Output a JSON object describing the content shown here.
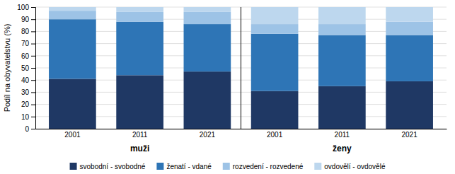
{
  "chart_data": {
    "type": "bar",
    "stacked": true,
    "categories": [
      "2001",
      "2011",
      "2021",
      "2001",
      "2011",
      "2021"
    ],
    "annotations": [
      "muži",
      "ženy"
    ],
    "series": [
      {
        "name": "svobodní - svobodné",
        "color": "#1f3864",
        "values": [
          41,
          44,
          47,
          31,
          35,
          39
        ]
      },
      {
        "name": "ženatí - vdané",
        "color": "#2e75b6",
        "values": [
          49,
          44,
          39,
          47,
          42,
          38
        ]
      },
      {
        "name": "rozvedení - rozvedené",
        "color": "#9dc3e6",
        "values": [
          7,
          8,
          10,
          8,
          9,
          11
        ]
      },
      {
        "name": "ovdovělí - ovdovělé",
        "color": "#bdd7ee",
        "values": [
          3,
          4,
          4,
          14,
          14,
          12
        ]
      }
    ],
    "y_label": "Podíl na obyvatelstvu (%)",
    "ylim": [
      0,
      100
    ],
    "yticks": [
      0,
      10,
      20,
      30,
      40,
      50,
      60,
      70,
      80,
      90,
      100
    ],
    "grid": true,
    "legend": "bottom"
  }
}
